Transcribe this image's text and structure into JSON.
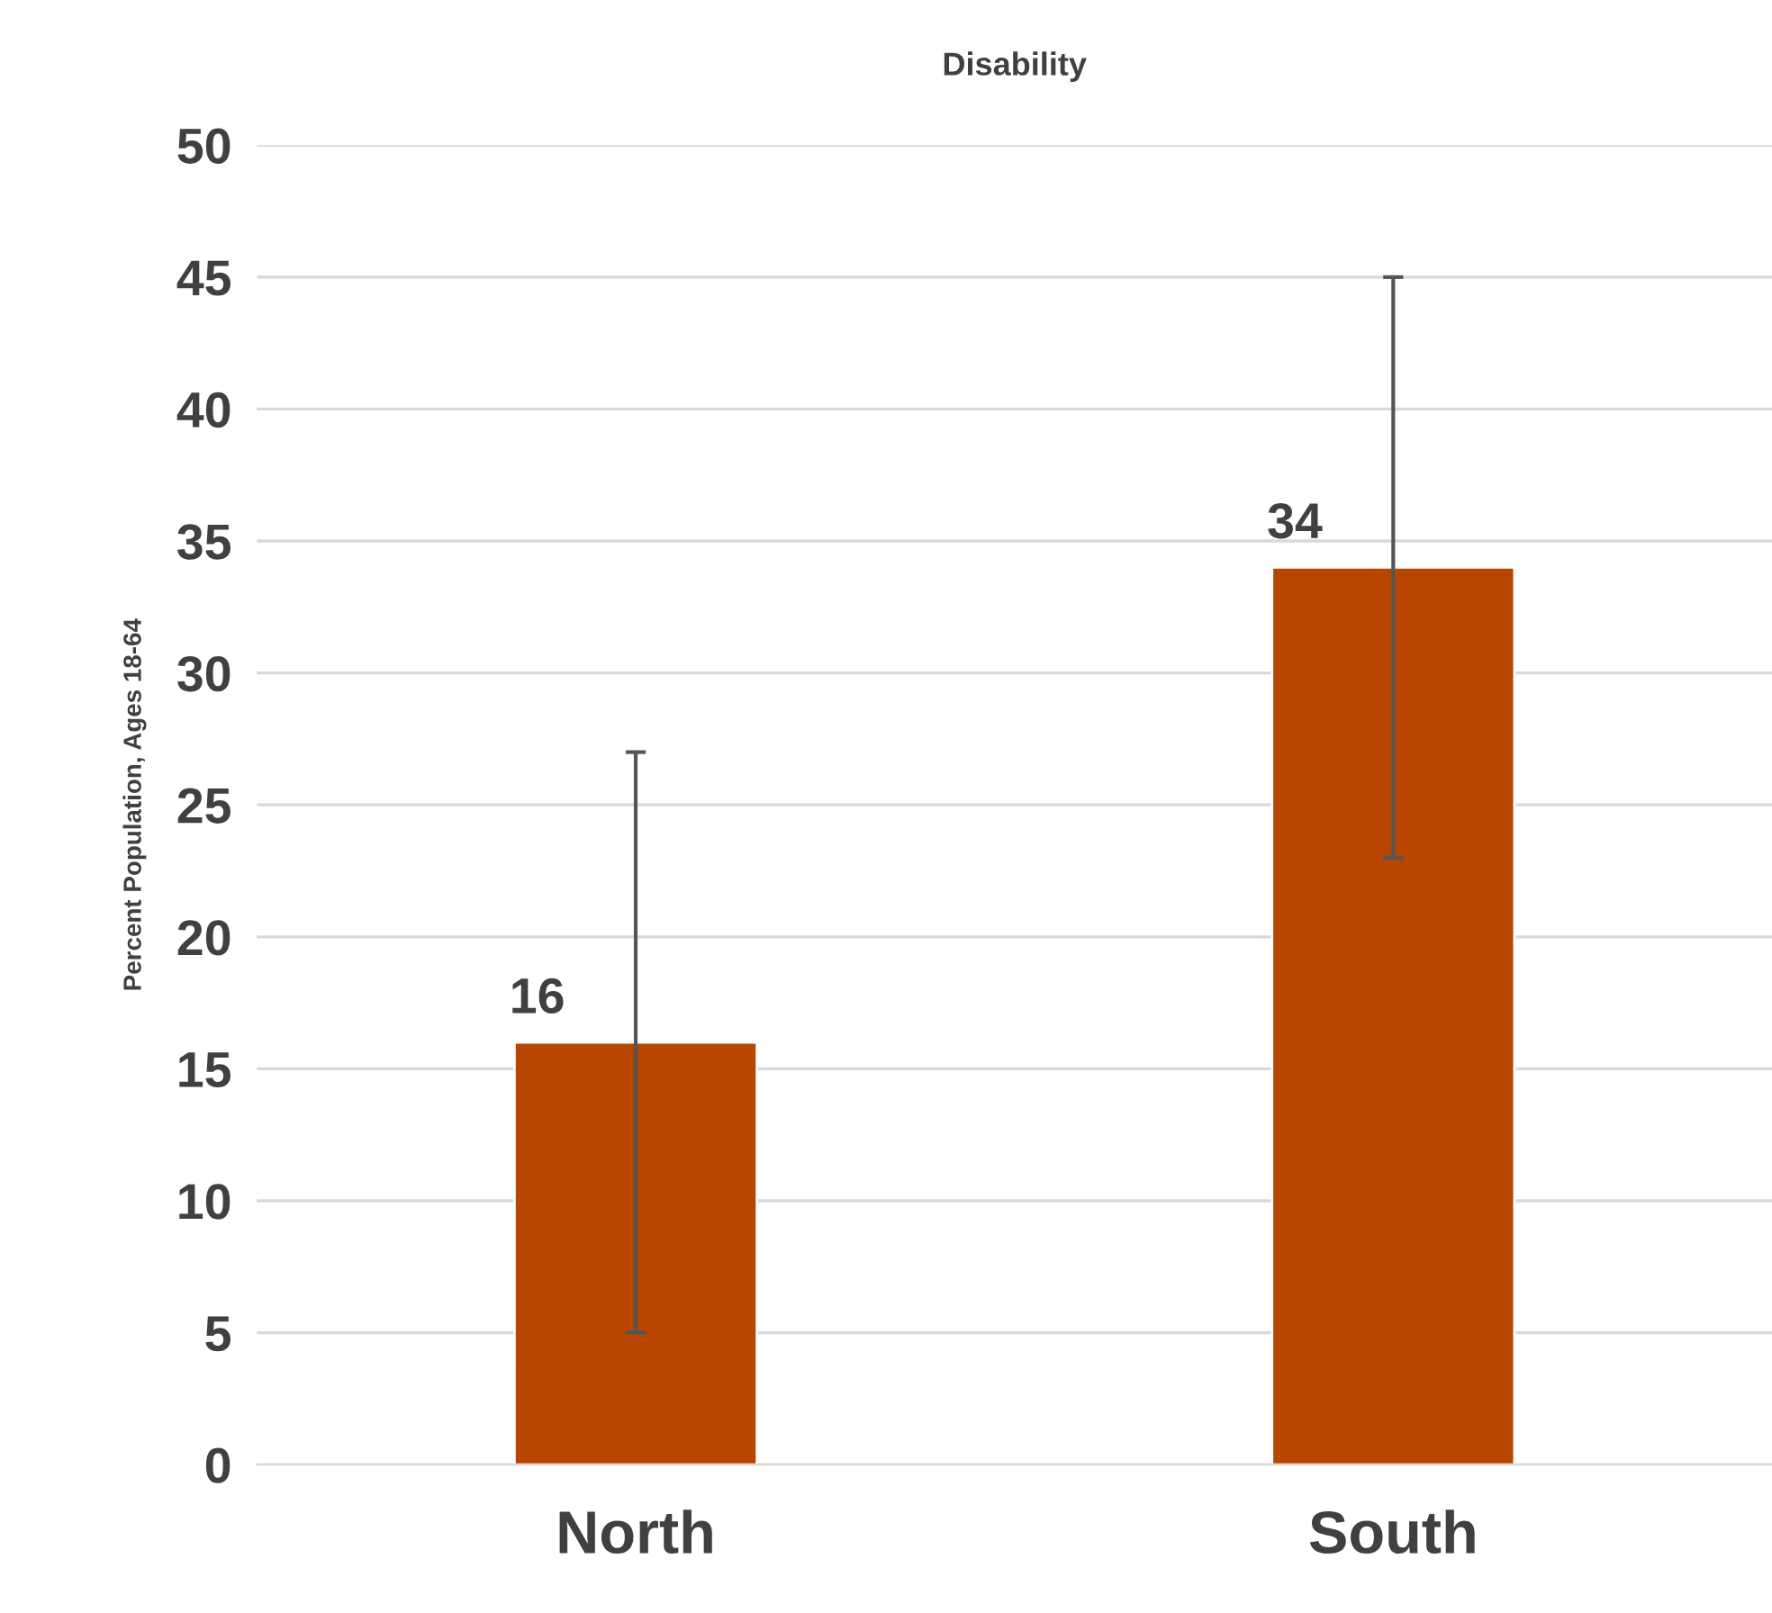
{
  "chart_data": {
    "type": "bar",
    "title": "Disability",
    "ylabel": "Percent Population, Ages 18-64",
    "categories": [
      "North",
      "South"
    ],
    "values": [
      16,
      34
    ],
    "errors": [
      11,
      11
    ],
    "color": "#b94600",
    "ylim": [
      0,
      50
    ],
    "yticks": [
      0,
      5,
      10,
      15,
      20,
      25,
      30,
      35,
      40,
      45,
      50
    ],
    "grid": "y",
    "data_labels": true
  }
}
